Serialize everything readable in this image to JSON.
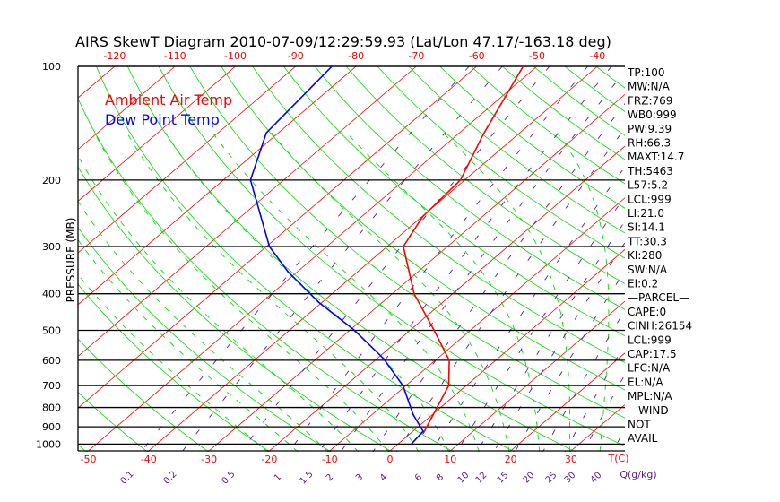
{
  "title": "AIRS SkewT Diagram 2010-07-09/12:29:59.93 (Lat/Lon 47.17/-163.18 deg)",
  "chart_data": {
    "type": "line",
    "subtype": "skew-t log-p",
    "title": "AIRS SkewT Diagram 2010-07-09/12:29:59.93 (Lat/Lon 47.17/-163.18 deg)",
    "ylabel": "PRESSURE (MB)",
    "xlabel": "T(C)",
    "mixing_ratio_label": "Q(g/kg)",
    "ylim": [
      1050,
      100
    ],
    "grid": true,
    "legend_position": "top-left",
    "legend": [
      {
        "name": "Ambient Air Temp",
        "color": "#ff0000"
      },
      {
        "name": "Dew Point Temp",
        "color": "#0000ff"
      }
    ],
    "pressure_ticks": [
      "100",
      "200",
      "300",
      "400",
      "500",
      "600",
      "700",
      "800",
      "900",
      "1000"
    ],
    "top_temp_ticks": [
      "-120",
      "-110",
      "-100",
      "-90",
      "-80",
      "-70",
      "-60",
      "-50",
      "-40"
    ],
    "bottom_temp_ticks": [
      "-50",
      "-40",
      "-30",
      "-20",
      "-10",
      "0",
      "10",
      "20",
      "30"
    ],
    "mixing_ratio_ticks": [
      "0.1",
      "0.2",
      "0.5",
      "1",
      "1.5",
      "2",
      "3",
      "4",
      "6",
      "8",
      "10",
      "12",
      "15",
      "20",
      "25",
      "30",
      "40"
    ],
    "series": [
      {
        "name": "Ambient Air Temp",
        "color": "#ff0000",
        "p": [
          936,
          800,
          700,
          600,
          500,
          400,
          300,
          250,
          200,
          151,
          100
        ],
        "t": [
          2.1,
          -0.6,
          -2.9,
          -7.7,
          -16.0,
          -26.4,
          -37.3,
          -39.9,
          -40.7,
          -45.8,
          -52.3
        ]
      },
      {
        "name": "Dew Point Temp",
        "color": "#0000ff",
        "p": [
          1000,
          925,
          837,
          700,
          594,
          499,
          421,
          350,
          300,
          200,
          150,
          100
        ],
        "t": [
          2.2,
          1.7,
          -3.1,
          -10.5,
          -18.9,
          -29.3,
          -40.6,
          -51.5,
          -59.5,
          -75.5,
          -82.0,
          -84.0
        ]
      }
    ]
  },
  "stats": [
    "TP:100",
    "MW:N/A",
    "FRZ:769",
    "WB0:999",
    "PW:9.39",
    "RH:66.3",
    "MAXT:14.7",
    "TH:5463",
    "L57:5.2",
    "LCL:999",
    "LI:21.0",
    "SI:14.1",
    "TT:30.3",
    "KI:280",
    "SW:N/A",
    "EI:0.2",
    "—PARCEL—",
    "CAPE:0",
    "CINH:26154",
    "LCL:999",
    "CAP:17.5",
    "LFC:N/A",
    "EL:N/A",
    "MPL:N/A",
    "—WIND—",
    "NOT",
    "AVAIL"
  ]
}
